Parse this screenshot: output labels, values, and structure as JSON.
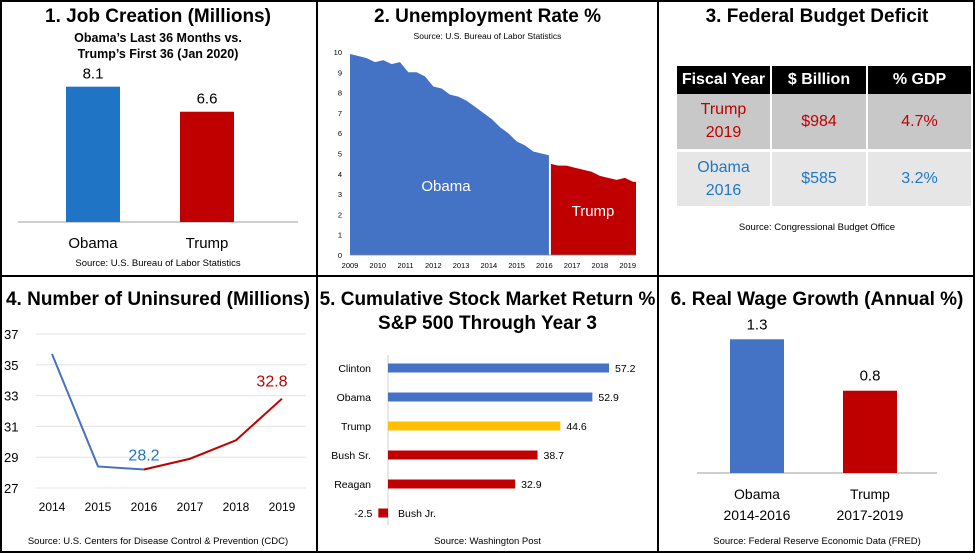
{
  "panels": {
    "jobs": {
      "title": "1. Job Creation (Millions)",
      "subtitle_1": "Obama’s Last 36 Months vs.",
      "subtitle_2": "Trump’s First 36 (Jan 2020)",
      "source": "Source:  U.S. Bureau of Labor Statistics"
    },
    "unemployment": {
      "title": "2. Unemployment Rate %",
      "source": "Source:  U.S. Bureau of Labor Statistics"
    },
    "deficit": {
      "title": "3. Federal Budget Deficit",
      "source": "Source:  Congressional Budget Office"
    },
    "uninsured": {
      "title": "4. Number of Uninsured (Millions)",
      "source": "Source:  U.S. Centers for Disease Control & Prevention (CDC)"
    },
    "stocks": {
      "title_1": "5. Cumulative Stock Market Return %",
      "title_2": "S&P 500 Through Year 3",
      "source": "Source:  Washington Post"
    },
    "wages": {
      "title": "6. Real Wage Growth (Annual %)",
      "source": "Source:  Federal Reserve Economic Data (FRED)"
    }
  },
  "colors": {
    "obama_blue": "#1F74C6",
    "area_blue": "#4472C4",
    "trump_red": "#C00000",
    "trump_gold": "#FFC000",
    "axis_gray": "#BFBFBF"
  },
  "chart_data": [
    {
      "id": "jobs",
      "type": "bar",
      "categories": [
        "Obama",
        "Trump"
      ],
      "values": [
        8.1,
        6.6
      ],
      "data_labels": [
        "8.1",
        "6.6"
      ],
      "ylim": [
        0,
        8.5
      ]
    },
    {
      "id": "unemployment",
      "type": "area",
      "x_ticks": [
        "2009",
        "2010",
        "2011",
        "2012",
        "2013",
        "2014",
        "2015",
        "2016",
        "2017",
        "2018",
        "2019"
      ],
      "y_ticks": [
        "0",
        "1",
        "2",
        "3",
        "4",
        "5",
        "6",
        "7",
        "8",
        "9",
        "10"
      ],
      "ylim": [
        0,
        10
      ],
      "xlim": [
        2009.0,
        2019.3
      ],
      "series": [
        {
          "name": "Obama",
          "x": [
            2009.0,
            2009.3,
            2009.6,
            2009.9,
            2010.2,
            2010.5,
            2010.8,
            2011.1,
            2011.4,
            2011.7,
            2012.0,
            2012.3,
            2012.6,
            2012.9,
            2013.2,
            2013.5,
            2013.8,
            2014.1,
            2014.4,
            2014.7,
            2015.0,
            2015.3,
            2015.6,
            2015.9,
            2016.2
          ],
          "values": [
            9.9,
            9.8,
            9.7,
            9.5,
            9.6,
            9.4,
            9.5,
            9.0,
            9.0,
            8.8,
            8.3,
            8.2,
            7.9,
            7.8,
            7.6,
            7.3,
            7.0,
            6.7,
            6.3,
            6.0,
            5.6,
            5.4,
            5.1,
            5.0,
            4.9
          ]
        },
        {
          "name": "Trump",
          "x": [
            2016.2,
            2016.5,
            2016.8,
            2017.1,
            2017.4,
            2017.7,
            2018.0,
            2018.3,
            2018.6,
            2018.9,
            2019.2,
            2019.3
          ],
          "values": [
            4.5,
            4.4,
            4.4,
            4.3,
            4.2,
            4.1,
            3.9,
            3.8,
            3.7,
            3.8,
            3.6,
            3.6
          ]
        }
      ]
    },
    {
      "id": "deficit",
      "type": "table",
      "headers": [
        "Fiscal Year",
        "$ Billion",
        "% GDP"
      ],
      "rows": [
        {
          "year_1": "Trump",
          "year_2": "2019",
          "billion": "$984",
          "gdp": "4.7%"
        },
        {
          "year_1": "Obama",
          "year_2": "2016",
          "billion": "$585",
          "gdp": "3.2%"
        }
      ]
    },
    {
      "id": "uninsured",
      "type": "line",
      "x": [
        "2014",
        "2015",
        "2016",
        "2017",
        "2018",
        "2019"
      ],
      "values": [
        35.7,
        28.4,
        28.2,
        28.9,
        30.1,
        32.8
      ],
      "y_ticks": [
        "27",
        "29",
        "31",
        "33",
        "35",
        "37"
      ],
      "ylim": [
        27,
        37
      ],
      "annotations": [
        "28.2",
        "32.8"
      ]
    },
    {
      "id": "stocks",
      "type": "bar",
      "orientation": "horizontal",
      "categories": [
        "Clinton",
        "Obama",
        "Trump",
        "Bush Sr.",
        "Reagan",
        "Bush Jr."
      ],
      "values": [
        57.2,
        52.9,
        44.6,
        38.7,
        32.9,
        -2.5
      ],
      "data_labels": [
        "57.2",
        "52.9",
        "44.6",
        "38.7",
        "32.9",
        "-2.5"
      ]
    },
    {
      "id": "wages",
      "type": "bar",
      "categories": [
        "Obama",
        "Trump"
      ],
      "category_lines_2": [
        "2014-2016",
        "2017-2019"
      ],
      "values": [
        1.3,
        0.8
      ],
      "data_labels": [
        "1.3",
        "0.8"
      ],
      "ylim": [
        0,
        1.4
      ]
    }
  ]
}
